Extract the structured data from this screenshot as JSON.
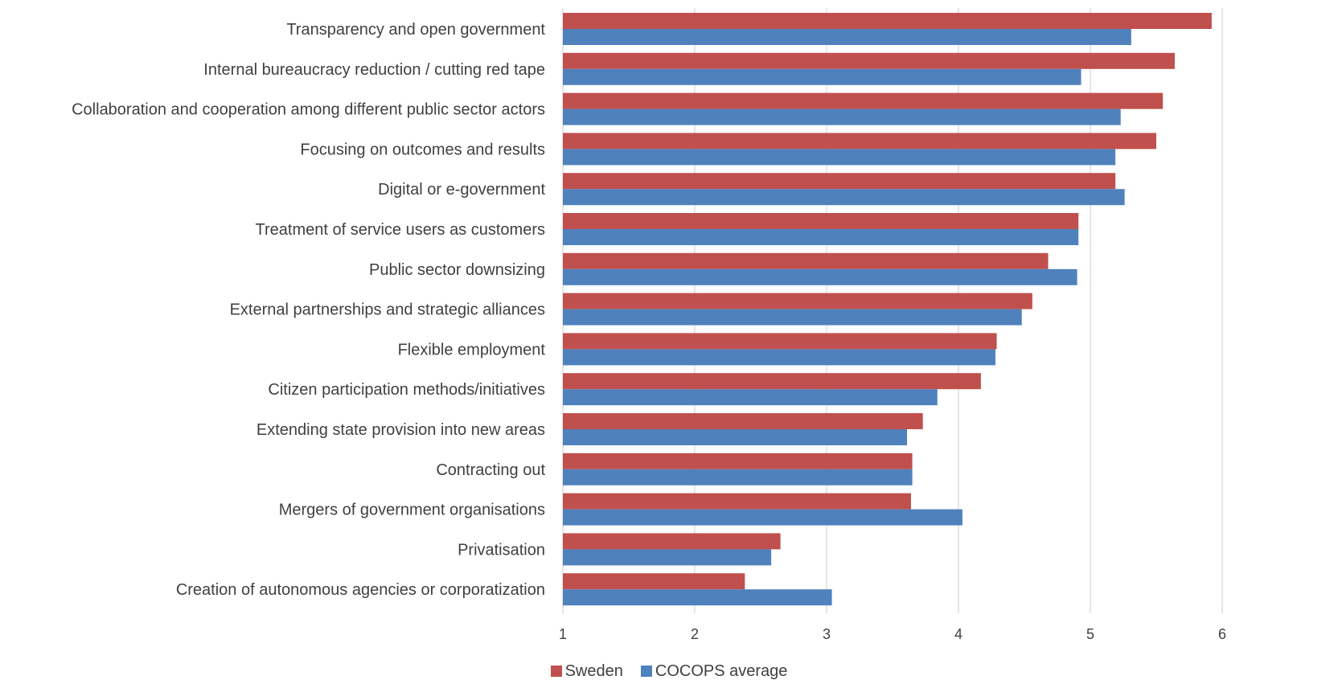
{
  "chart_data": {
    "type": "bar",
    "orientation": "horizontal",
    "categories": [
      "Transparency and open government",
      "Internal bureaucracy reduction / cutting red tape",
      "Collaboration and cooperation among different public sector actors",
      "Focusing on outcomes and results",
      "Digital or e-government",
      "Treatment of service users as customers",
      "Public sector downsizing",
      "External partnerships and strategic alliances",
      "Flexible employment",
      "Citizen participation methods/initiatives",
      "Extending state provision into new areas",
      "Contracting out",
      "Mergers of government organisations",
      "Privatisation",
      "Creation of autonomous agencies or corporatization"
    ],
    "series": [
      {
        "name": "Sweden",
        "color": "#c0504d",
        "values": [
          5.92,
          5.64,
          5.55,
          5.5,
          5.19,
          4.91,
          4.68,
          4.56,
          4.29,
          4.17,
          3.73,
          3.65,
          3.64,
          2.65,
          2.38
        ]
      },
      {
        "name": "COCOPS average",
        "color": "#4f81bd",
        "values": [
          5.31,
          4.93,
          5.23,
          5.19,
          5.26,
          4.91,
          4.9,
          4.48,
          4.28,
          3.84,
          3.61,
          3.65,
          4.03,
          2.58,
          3.04
        ]
      }
    ],
    "xlim": [
      1,
      6
    ],
    "xticks": [
      "1",
      "2",
      "3",
      "4",
      "5",
      "6"
    ],
    "grid": true,
    "legend_position": "bottom"
  }
}
